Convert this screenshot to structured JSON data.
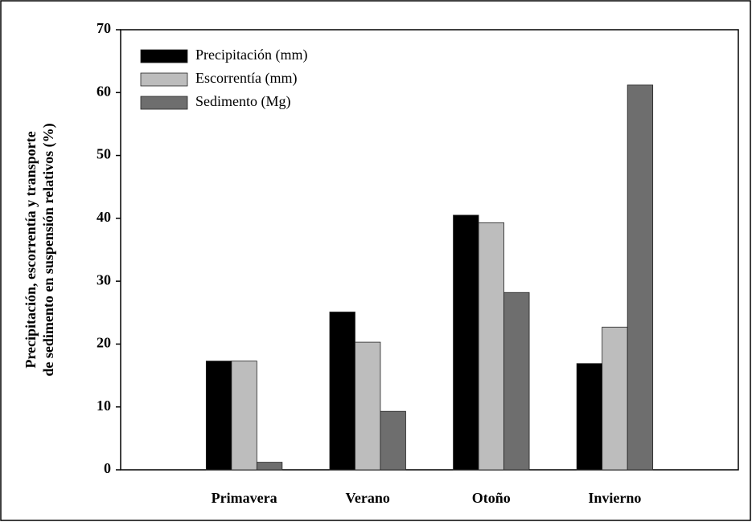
{
  "chart_data": {
    "type": "bar",
    "ylabel": [
      "Precipitación, escorrentía y transporte",
      "de sedimento en suspensión relativos (%)"
    ],
    "categories": [
      "Primavera",
      "Verano",
      "Otoño",
      "Invierno"
    ],
    "series": [
      {
        "name": "Precipitación (mm)",
        "color": "#000000",
        "values": [
          17.3,
          25.1,
          40.5,
          16.9
        ]
      },
      {
        "name": "Escorrentía (mm)",
        "color": "#bdbdbd",
        "values": [
          17.3,
          20.3,
          39.3,
          22.7
        ]
      },
      {
        "name": "Sedimento (Mg)",
        "color": "#6e6e6e",
        "values": [
          1.2,
          9.3,
          28.2,
          61.2
        ]
      }
    ],
    "ylim": [
      0,
      70
    ],
    "yticks": [
      0,
      10,
      20,
      30,
      40,
      50,
      60,
      70
    ],
    "grid": false,
    "legend": "upper left"
  }
}
